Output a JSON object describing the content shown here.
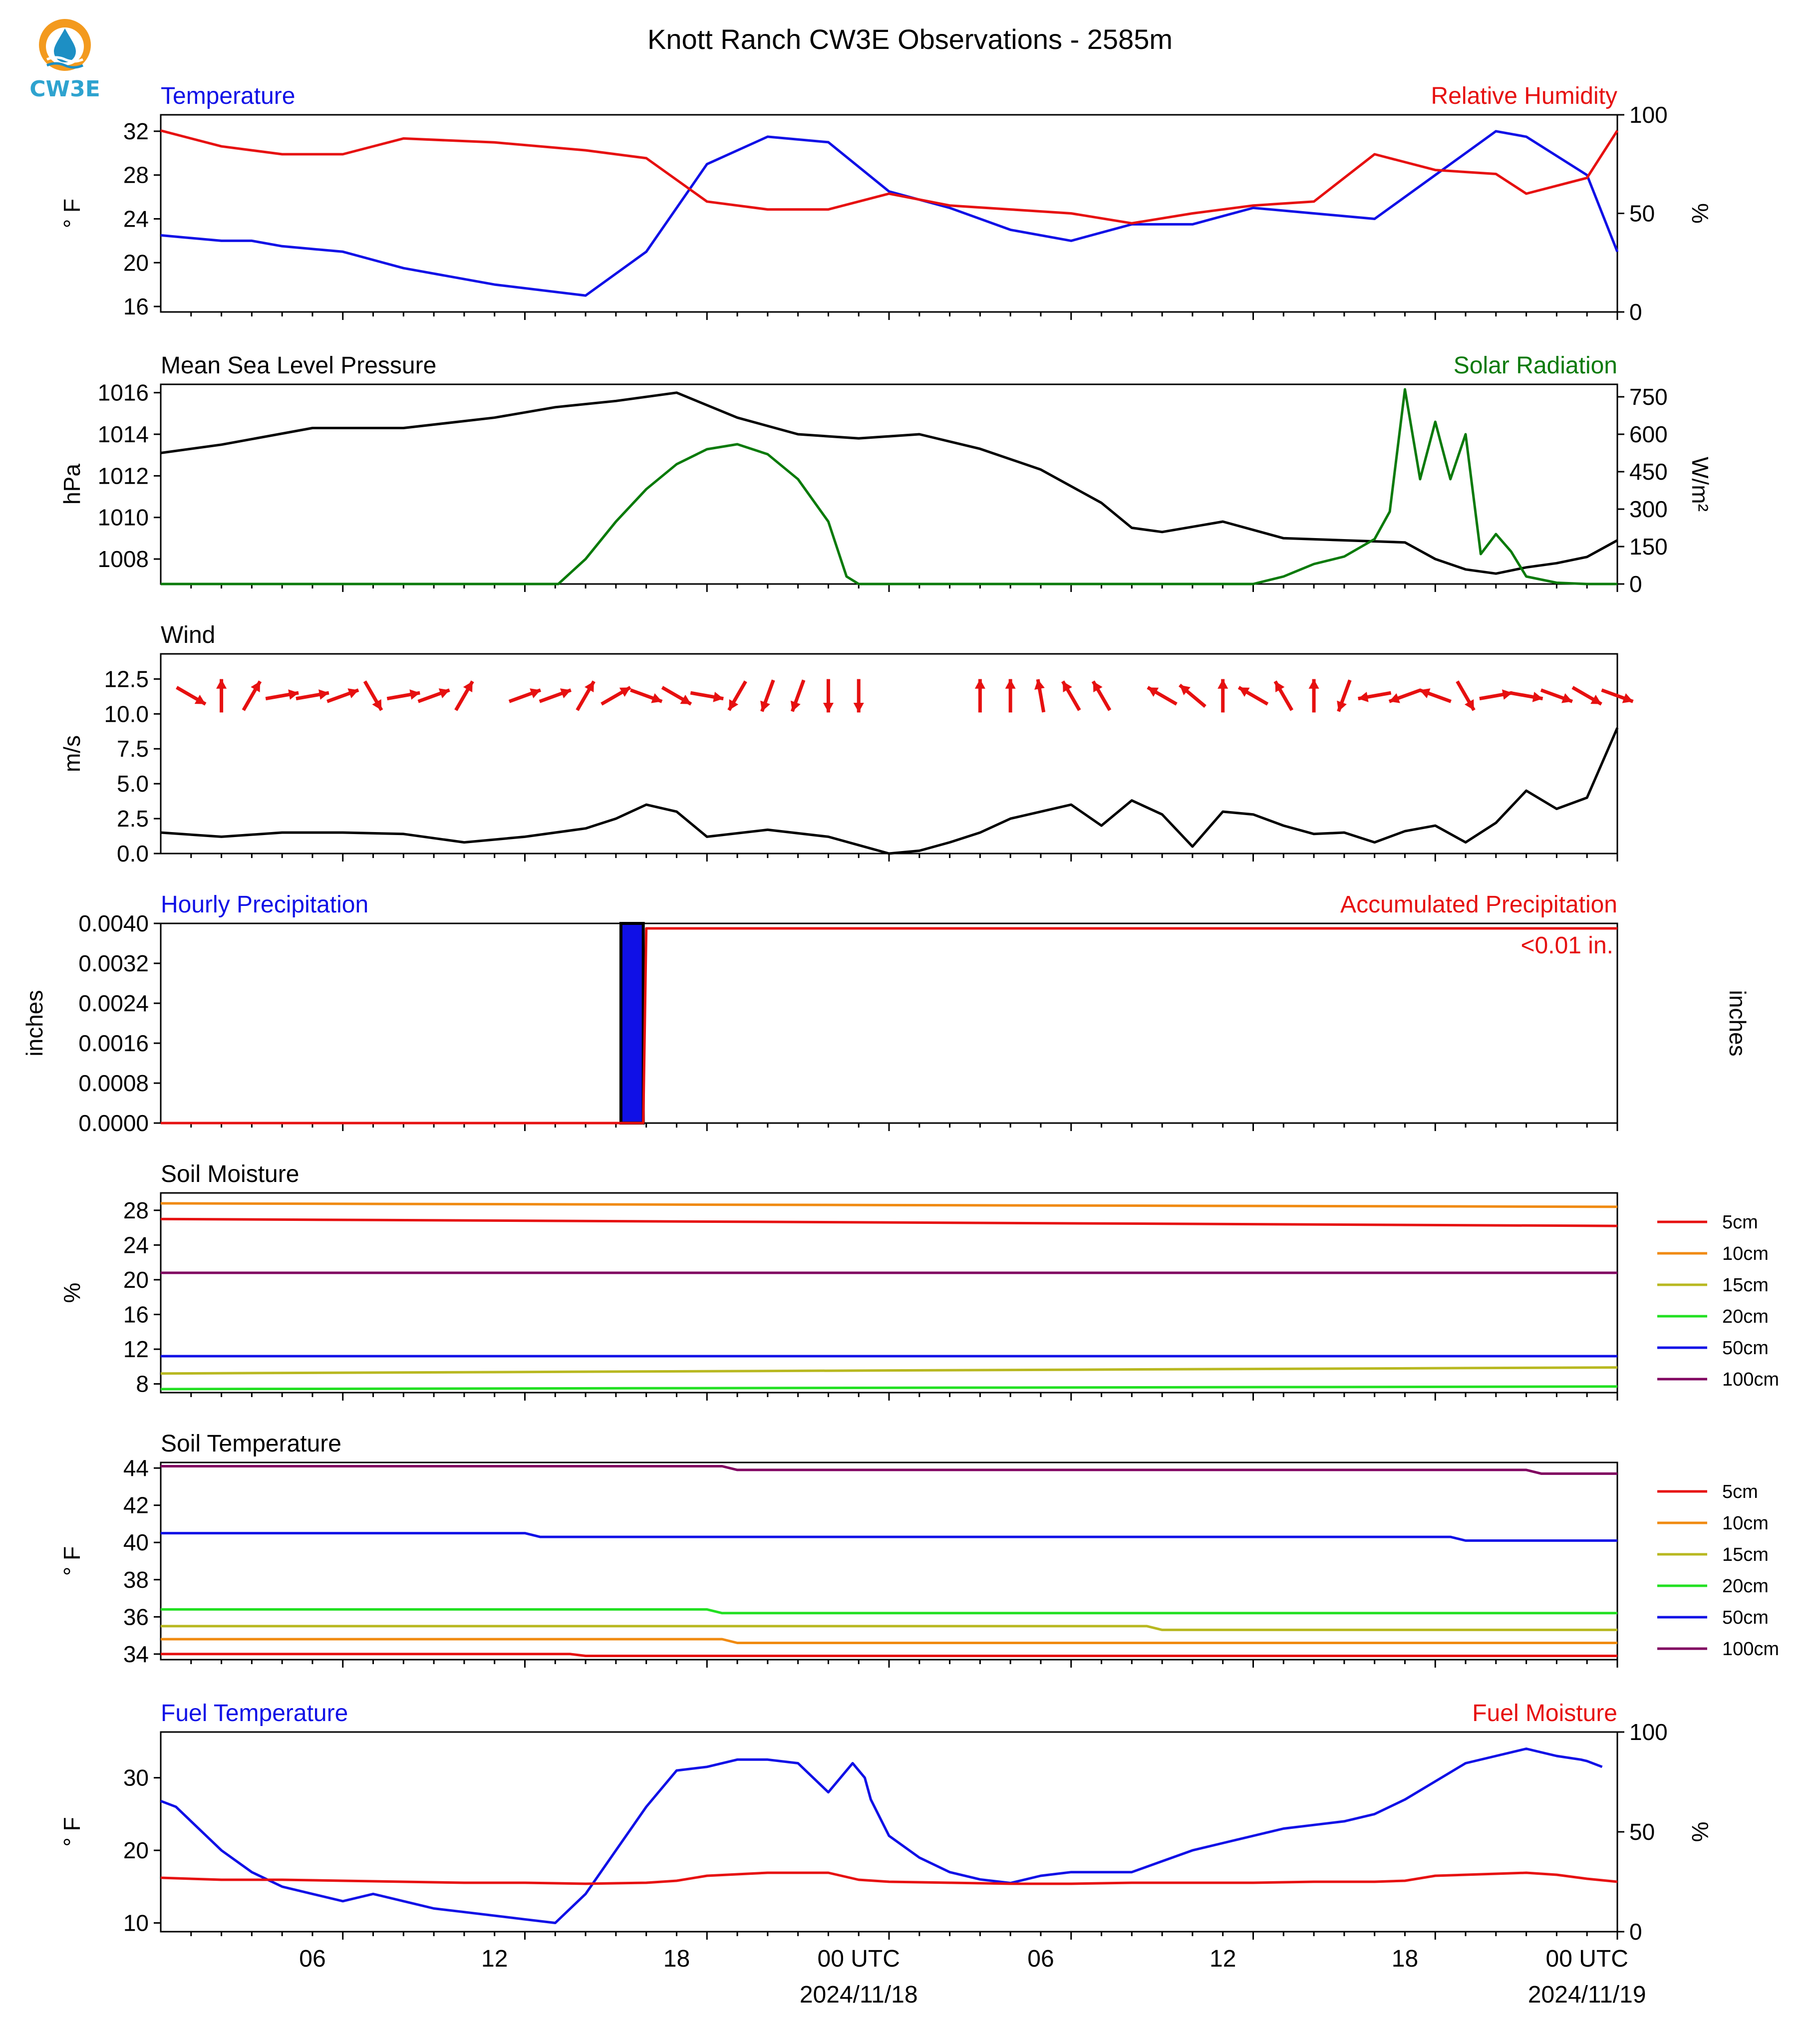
{
  "title": "Knott Ranch CW3E Observations - 2585m",
  "logo": {
    "text": "CW3E",
    "icon": "cw3e-droplet-logo",
    "colors": {
      "sun": "#f39a1e",
      "drop": "#1d8fc4"
    }
  },
  "colors": {
    "blue": "#1010e6",
    "red": "#e61010",
    "green": "#0a7a0a",
    "black": "#000000"
  },
  "x_axis": {
    "tick_labels": [
      "06",
      "12",
      "18",
      "00 UTC",
      "06",
      "12",
      "18",
      "00 UTC"
    ],
    "date_labels": [
      "2024/11/18",
      "2024/11/19"
    ],
    "range": [
      "2024-11-17T01:00Z",
      "2024-11-19T01:00Z"
    ]
  },
  "chart_data": [
    {
      "type": "line",
      "title_left": "Temperature",
      "title_right": "Relative Humidity",
      "ylabel": "° F",
      "ylabel_right": "%",
      "ylim": [
        15.5,
        33.5
      ],
      "ylim_right": [
        0,
        100
      ],
      "yticks": [
        "16",
        "20",
        "24",
        "28",
        "32"
      ],
      "yticks_right": [
        "0",
        "50",
        "100"
      ],
      "x_hours": [
        0,
        2,
        3,
        4,
        6,
        8,
        11,
        14,
        16,
        18,
        20,
        22,
        24,
        26,
        28,
        30,
        32,
        34,
        36,
        38,
        40,
        42,
        44,
        45,
        47,
        48
      ],
      "series": [
        {
          "name": "Temperature",
          "color": "#1010e6",
          "values": [
            22.5,
            22,
            22,
            21.5,
            21,
            19.5,
            18,
            17,
            21,
            29,
            31.5,
            31,
            26.5,
            25,
            23,
            22,
            23.5,
            23.5,
            25,
            24.5,
            24,
            28,
            32,
            31.5,
            28,
            21
          ]
        },
        {
          "name": "Relative Humidity",
          "color": "#e61010",
          "values": [
            92,
            84,
            82,
            80,
            80,
            88,
            86,
            82,
            78,
            56,
            52,
            52,
            60,
            54,
            52,
            50,
            45,
            50,
            54,
            56,
            80,
            72,
            70,
            60,
            68,
            92
          ]
        }
      ]
    },
    {
      "type": "line",
      "title_left": "Mean Sea Level Pressure",
      "title_right": "Solar Radiation",
      "ylabel": "hPa",
      "ylabel_right": "W/m²",
      "ylim": [
        1006.8,
        1016.4
      ],
      "ylim_right": [
        0,
        800
      ],
      "yticks": [
        "1008",
        "1010",
        "1012",
        "1014",
        "1016"
      ],
      "yticks_right": [
        "0",
        "150",
        "300",
        "450",
        "600",
        "750"
      ],
      "series": [
        {
          "name": "Mean Sea Level Pressure",
          "color": "#000000",
          "x_hours": [
            0,
            2,
            5,
            8,
            11,
            13,
            15,
            17,
            19,
            21,
            23,
            25,
            27,
            29,
            31,
            32,
            33,
            35,
            37,
            39,
            41,
            42,
            43,
            44,
            45,
            46,
            47,
            48
          ],
          "values": [
            1013.1,
            1013.5,
            1014.3,
            1014.3,
            1014.8,
            1015.3,
            1015.6,
            1016.0,
            1014.8,
            1014.0,
            1013.8,
            1014.0,
            1013.3,
            1012.3,
            1010.7,
            1009.5,
            1009.3,
            1009.8,
            1009.0,
            1008.9,
            1008.8,
            1008.0,
            1007.5,
            1007.3,
            1007.6,
            1007.8,
            1008.1,
            1008.9
          ]
        },
        {
          "name": "Solar Radiation",
          "color": "#0a7a0a",
          "x_hours": [
            0,
            13.1,
            14,
            15,
            16,
            17,
            18,
            19,
            20,
            21,
            22,
            22.6,
            23,
            36,
            37,
            38,
            39,
            40,
            40.5,
            41,
            41.5,
            42,
            42.5,
            43,
            43.5,
            44,
            44.5,
            45,
            46,
            47,
            48
          ],
          "values": [
            0,
            0,
            100,
            250,
            380,
            480,
            540,
            560,
            520,
            420,
            250,
            30,
            0,
            0,
            30,
            80,
            110,
            180,
            290,
            780,
            420,
            650,
            420,
            600,
            120,
            200,
            130,
            30,
            5,
            0,
            0
          ]
        }
      ]
    },
    {
      "type": "line",
      "title_left": "Wind",
      "ylabel": "m/s",
      "ylim": [
        0,
        14.3
      ],
      "yticks": [
        "0.0",
        "2.5",
        "5.0",
        "7.5",
        "10.0",
        "12.5"
      ],
      "barb_level": 11.3,
      "series": [
        {
          "name": "Wind Speed",
          "color": "#000000",
          "x_hours": [
            0,
            2,
            4,
            6,
            8,
            10,
            12,
            14,
            15,
            16,
            17,
            18,
            20,
            22,
            23,
            24,
            25,
            26,
            27,
            28,
            30,
            31,
            32,
            33,
            34,
            35,
            36,
            37,
            38,
            39,
            40,
            41,
            42,
            43,
            44,
            45,
            46,
            47,
            48
          ],
          "values": [
            1.5,
            1.2,
            1.5,
            1.5,
            1.4,
            0.8,
            1.2,
            1.8,
            2.5,
            3.5,
            3.0,
            1.2,
            1.7,
            1.2,
            0.6,
            0.0,
            0.2,
            0.8,
            1.5,
            2.5,
            3.5,
            2.0,
            3.8,
            2.8,
            0.5,
            3.0,
            2.8,
            2.0,
            1.4,
            1.5,
            0.8,
            1.6,
            2.0,
            0.8,
            2.2,
            4.5,
            3.2,
            4.0,
            9.0
          ]
        }
      ],
      "arrows": {
        "color": "#e61010",
        "x_hours": [
          1,
          2,
          3,
          4,
          5,
          6,
          7,
          8,
          9,
          10,
          12,
          13,
          14,
          15,
          16,
          17,
          18,
          19,
          20,
          21,
          22,
          23,
          27,
          28,
          29,
          30,
          31,
          33,
          34,
          35,
          36,
          37,
          38,
          39,
          40,
          41,
          42,
          43,
          44,
          45,
          46,
          47,
          48
        ],
        "dir_deg": [
          120,
          0,
          30,
          80,
          80,
          70,
          150,
          80,
          70,
          30,
          70,
          70,
          30,
          60,
          110,
          120,
          100,
          210,
          200,
          200,
          180,
          180,
          0,
          0,
          350,
          330,
          330,
          300,
          310,
          0,
          300,
          330,
          0,
          200,
          260,
          250,
          290,
          150,
          80,
          100,
          110,
          120,
          110
        ],
        "length_hours": 1.1
      }
    },
    {
      "type": "bar",
      "title_left": "Hourly Precipitation",
      "title_right": "Accumulated Precipitation",
      "annotation": "<0.01 in.",
      "ylabel": "inches",
      "ylabel_right": "inches",
      "ylim": [
        0,
        0.004
      ],
      "yticks": [
        "0.0000",
        "0.0008",
        "0.0016",
        "0.0024",
        "0.0032",
        "0.0040"
      ],
      "bars": {
        "x_start_hours": [
          15
        ],
        "x_end_hours": [
          16
        ],
        "values": [
          0.004
        ],
        "color": "#1010e6"
      },
      "series": [
        {
          "name": "Accumulated Precipitation",
          "color": "#e61010",
          "x_hours": [
            0,
            15.9,
            16.0,
            48
          ],
          "values": [
            0,
            0,
            0.0039,
            0.0039
          ]
        }
      ]
    },
    {
      "type": "line",
      "title_left": "Soil Moisture",
      "ylabel": "%",
      "ylim": [
        7,
        30
      ],
      "yticks": [
        "8",
        "12",
        "16",
        "20",
        "24",
        "28"
      ],
      "legend": "right",
      "series": [
        {
          "name": "5cm",
          "color": "#e61010",
          "x_hours": [
            0,
            48
          ],
          "values": [
            27.0,
            26.2
          ]
        },
        {
          "name": "10cm",
          "color": "#f08a10",
          "x_hours": [
            0,
            48
          ],
          "values": [
            28.8,
            28.4
          ]
        },
        {
          "name": "15cm",
          "color": "#b8b820",
          "x_hours": [
            0,
            48
          ],
          "values": [
            9.2,
            9.9
          ]
        },
        {
          "name": "20cm",
          "color": "#22e022",
          "x_hours": [
            0,
            48
          ],
          "values": [
            7.4,
            7.7
          ]
        },
        {
          "name": "50cm",
          "color": "#1010e6",
          "x_hours": [
            0,
            48
          ],
          "values": [
            11.2,
            11.2
          ]
        },
        {
          "name": "100cm",
          "color": "#800060",
          "x_hours": [
            0,
            48
          ],
          "values": [
            20.8,
            20.8
          ]
        }
      ]
    },
    {
      "type": "line",
      "title_left": "Soil Temperature",
      "ylabel": "° F",
      "ylim": [
        33.7,
        44.3
      ],
      "yticks": [
        "34",
        "36",
        "38",
        "40",
        "42",
        "44"
      ],
      "legend": "right",
      "series": [
        {
          "name": "5cm",
          "color": "#e61010",
          "x_hours": [
            0,
            13.5,
            14,
            48
          ],
          "values": [
            34.0,
            34.0,
            33.9,
            33.9
          ]
        },
        {
          "name": "10cm",
          "color": "#f08a10",
          "x_hours": [
            0,
            18.5,
            19,
            48
          ],
          "values": [
            34.8,
            34.8,
            34.6,
            34.6
          ]
        },
        {
          "name": "15cm",
          "color": "#b8b820",
          "x_hours": [
            0,
            32.5,
            33,
            48
          ],
          "values": [
            35.5,
            35.5,
            35.3,
            35.3
          ]
        },
        {
          "name": "20cm",
          "color": "#22e022",
          "x_hours": [
            0,
            18,
            18.5,
            48
          ],
          "values": [
            36.4,
            36.4,
            36.2,
            36.2
          ]
        },
        {
          "name": "50cm",
          "color": "#1010e6",
          "x_hours": [
            0,
            12,
            12.5,
            42.5,
            43,
            48
          ],
          "values": [
            40.5,
            40.5,
            40.3,
            40.3,
            40.1,
            40.1
          ]
        },
        {
          "name": "100cm",
          "color": "#800060",
          "x_hours": [
            0,
            18.5,
            19,
            45,
            45.5,
            48
          ],
          "values": [
            44.1,
            44.1,
            43.9,
            43.9,
            43.7,
            43.7
          ]
        }
      ]
    },
    {
      "type": "line",
      "title_left": "Fuel Temperature",
      "title_right": "Fuel Moisture",
      "ylabel": "° F",
      "ylabel_right": "%",
      "ylim": [
        8.8,
        36.3
      ],
      "ylim_right": [
        0,
        100
      ],
      "yticks": [
        "10",
        "20",
        "30"
      ],
      "yticks_right": [
        "0",
        "50",
        "100"
      ],
      "series": [
        {
          "name": "Fuel Temperature",
          "color": "#1010e6",
          "x_hours": [
            0,
            0.5,
            1,
            2,
            3,
            4,
            5,
            6,
            7,
            8,
            9,
            10,
            12,
            13,
            14,
            15,
            16,
            17,
            18,
            19,
            20,
            21,
            22,
            22.8,
            23.2,
            23.4,
            24,
            25,
            26,
            27,
            28,
            29,
            30,
            31,
            32,
            33,
            34,
            35,
            36,
            37,
            38,
            39,
            40,
            41,
            42,
            43,
            44,
            45,
            46,
            46.8,
            47,
            47.5
          ],
          "values": [
            26.8,
            26,
            24,
            20,
            17,
            15,
            14,
            13,
            14,
            13,
            12,
            11.5,
            10.5,
            10,
            14,
            20,
            26,
            31,
            31.5,
            32.5,
            32.5,
            32,
            28,
            32,
            30,
            27,
            22,
            19,
            17,
            16,
            15.5,
            16.5,
            17,
            17,
            17,
            18.5,
            20,
            21,
            22,
            23,
            23.5,
            24,
            25,
            27,
            29.5,
            32,
            33,
            34,
            33,
            32.5,
            32.3,
            31.5
          ]
        },
        {
          "name": "Fuel Moisture",
          "color": "#e61010",
          "x_hours": [
            0,
            2,
            4,
            6,
            8,
            10,
            12,
            14,
            16,
            17,
            18,
            20,
            22,
            23,
            24,
            26,
            28,
            30,
            32,
            34,
            36,
            38,
            40,
            41,
            42,
            44,
            45,
            46,
            47,
            48
          ],
          "values": [
            27,
            26,
            26,
            25.5,
            25,
            24.5,
            24.5,
            24,
            24.5,
            25.5,
            28,
            29.5,
            29.5,
            26,
            25,
            24.5,
            24,
            24,
            24.5,
            24.5,
            24.5,
            25,
            25,
            25.5,
            28,
            29,
            29.5,
            28.5,
            26.5,
            25
          ]
        }
      ]
    }
  ],
  "soil_legend_labels": [
    "5cm",
    "10cm",
    "15cm",
    "20cm",
    "50cm",
    "100cm"
  ]
}
